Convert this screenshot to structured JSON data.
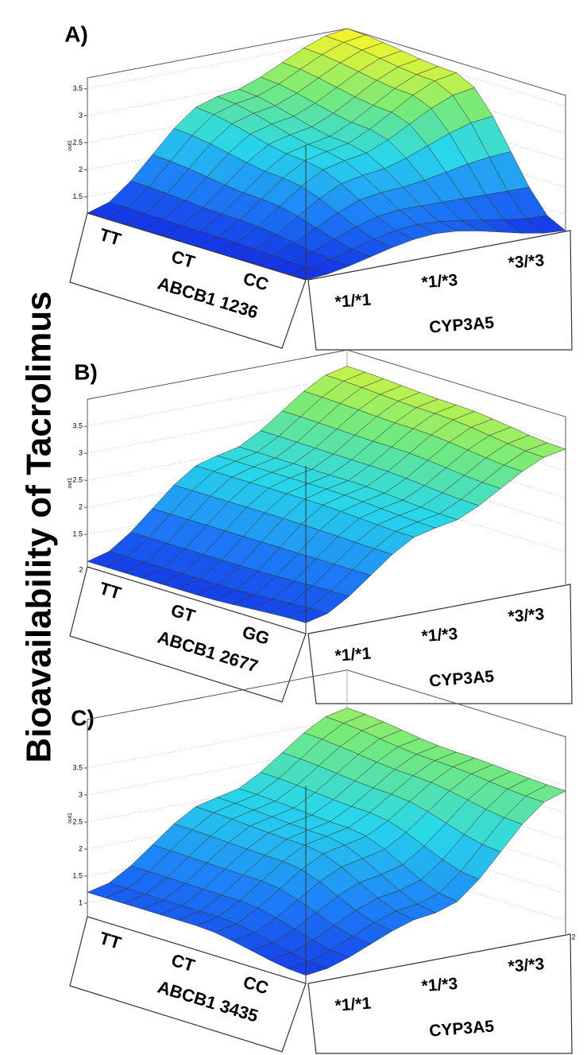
{
  "figure_label": "Bioavailability of Tacrolimus",
  "chart_data": [
    {
      "type": "surface",
      "panel_label": "A)",
      "x_label": "ABCB1 1236",
      "y_label": "CYP3A5",
      "z_label": "out1",
      "x_categories": [
        "TT",
        "CT",
        "CC"
      ],
      "y_categories": [
        "*1/*1",
        "*1/*3",
        "*3/*3"
      ],
      "values": [
        [
          1.2,
          2.9,
          3.7
        ],
        [
          1.2,
          2.5,
          3.5
        ],
        [
          1.2,
          1.6,
          1.2
        ]
      ],
      "zlim": [
        1.2,
        3.7
      ],
      "zticks": [
        1.5,
        2,
        2.5,
        3,
        3.5
      ],
      "grid": true
    },
    {
      "type": "surface",
      "panel_label": "B)",
      "x_label": "ABCB1 2677",
      "y_label": "CYP3A5",
      "z_label": "out1",
      "x_categories": [
        "TT",
        "GT",
        "GG"
      ],
      "y_categories": [
        "*1/*1",
        "*1/*3",
        "*3/*3"
      ],
      "values": [
        [
          1.0,
          2.5,
          3.7
        ],
        [
          1.0,
          2.5,
          3.6
        ],
        [
          1.1,
          2.4,
          3.4
        ]
      ],
      "zlim": [
        0.9,
        4.0
      ],
      "zticks": [
        1.5,
        2,
        2.5,
        3,
        3.5
      ],
      "corner_tick": 2,
      "grid": true
    },
    {
      "type": "surface",
      "panel_label": "C)",
      "x_label": "ABCB1 3435",
      "y_label": "CYP3A5",
      "z_label": "out1",
      "x_categories": [
        "TT",
        "CT",
        "CC"
      ],
      "y_categories": [
        "*1/*1",
        "*1/*3",
        "*3/*3"
      ],
      "values": [
        [
          1.2,
          2.5,
          3.7
        ],
        [
          1.2,
          2.4,
          3.5
        ],
        [
          0.9,
          1.6,
          3.4
        ]
      ],
      "zlim": [
        0.75,
        4.4
      ],
      "zticks": [
        1,
        1.5,
        2,
        2.5,
        3,
        3.5
      ],
      "corner_tick": 2,
      "grid": true
    }
  ]
}
